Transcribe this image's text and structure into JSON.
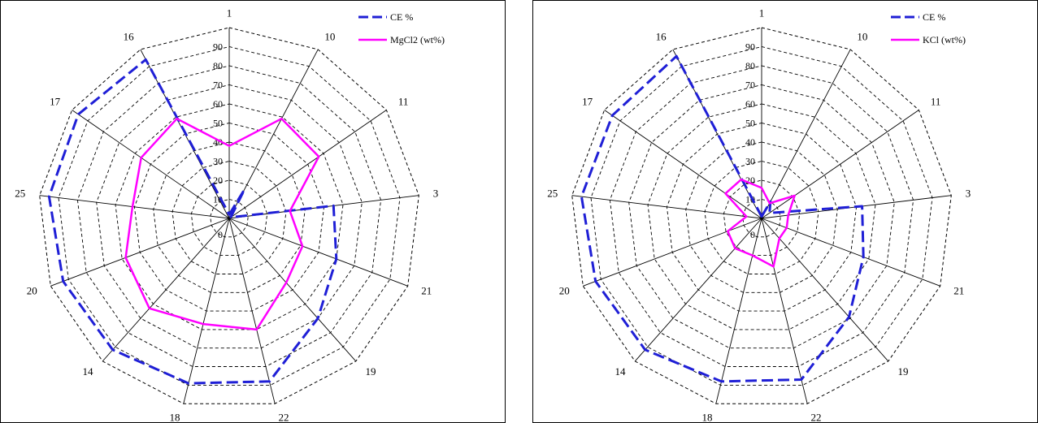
{
  "chart_data": [
    {
      "type": "radar",
      "categories": [
        "1",
        "10",
        "11",
        "3",
        "21",
        "19",
        "22",
        "18",
        "14",
        "20",
        "25",
        "17",
        "16"
      ],
      "radial_ticks": [
        "0",
        "10",
        "20",
        "30",
        "40",
        "50",
        "60",
        "70",
        "80",
        "90"
      ],
      "rlim": [
        0,
        100
      ],
      "grid": true,
      "legend_position": "top-right",
      "series": [
        {
          "name": "CE %",
          "color": "#1f1fd6",
          "dash": "dashed",
          "values": [
            2,
            17,
            1,
            55,
            60,
            70,
            88,
            89,
            92,
            93,
            95,
            96,
            94
          ]
        },
        {
          "name": "MgCl2 (wt%)",
          "color": "#ff00ff",
          "dash": "solid",
          "values": [
            38,
            59,
            57,
            32,
            41,
            45,
            60,
            57,
            63,
            58,
            51,
            56,
            59
          ]
        }
      ]
    },
    {
      "type": "radar",
      "categories": [
        "1",
        "10",
        "11",
        "3",
        "21",
        "19",
        "22",
        "18",
        "14",
        "20",
        "25",
        "17",
        "16"
      ],
      "radial_ticks": [
        "0",
        "10",
        "20",
        "30",
        "40",
        "50",
        "60",
        "70",
        "80",
        "90"
      ],
      "rlim": [
        0,
        100
      ],
      "grid": true,
      "legend_position": "top-right",
      "series": [
        {
          "name": "CE %",
          "color": "#1f1fd6",
          "dash": "dashed",
          "values": [
            1,
            10,
            5,
            53,
            57,
            69,
            87,
            88,
            92,
            93,
            95,
            95,
            96
          ]
        },
        {
          "name": "KCl (wt%)",
          "color": "#ff00ff",
          "dash": "solid",
          "values": [
            16,
            9,
            21,
            14,
            14,
            14,
            26,
            20,
            21,
            19,
            8,
            23,
            23
          ]
        }
      ]
    }
  ]
}
